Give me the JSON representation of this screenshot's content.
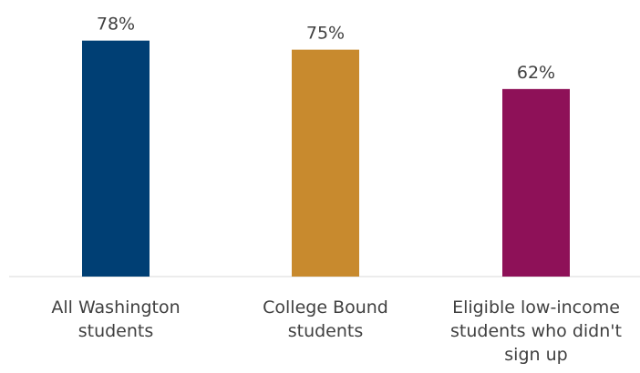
{
  "chart_data": {
    "type": "bar",
    "categories": [
      [
        "All Washington",
        "students"
      ],
      [
        "College Bound",
        "students"
      ],
      [
        "Eligible low-income",
        "students who didn't",
        "sign up"
      ]
    ],
    "values": [
      78,
      75,
      62
    ],
    "value_labels": [
      "78%",
      "75%",
      "62%"
    ],
    "colors": [
      "#003f74",
      "#c88a2e",
      "#8e1158"
    ],
    "ylim": [
      0,
      80
    ],
    "title": "",
    "xlabel": "",
    "ylabel": "",
    "grid": false
  }
}
